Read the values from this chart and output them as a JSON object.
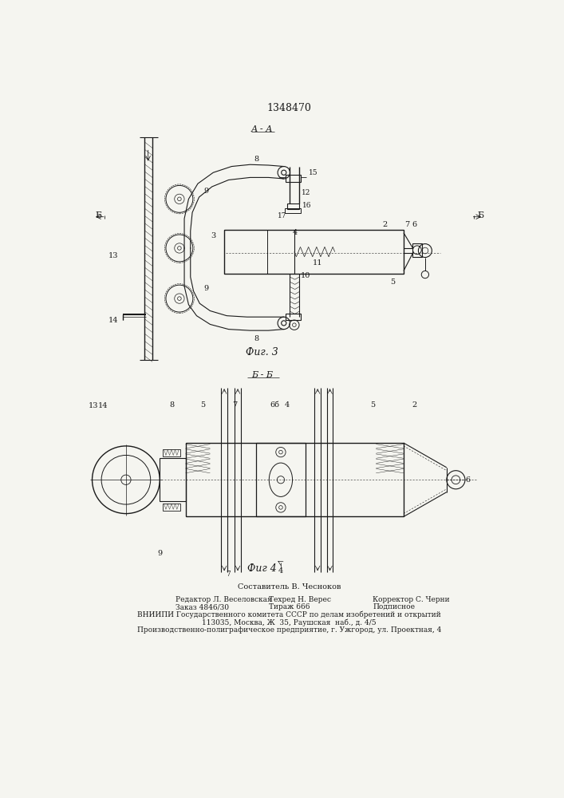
{
  "patent_number": "1348470",
  "section_label_top": "А - А",
  "section_label_bottom": "Б - Б",
  "fig_label_3": "Фиг. 3",
  "fig_label_4": "Фиг 4",
  "footer_line1": "Составитель В. Чесноков",
  "footer_editor": "Редактор Л. Веселовская",
  "footer_techred": "Техред Н. Верес",
  "footer_corrector": "Корректор С. Черни",
  "footer_order": "Заказ 4846/30",
  "footer_tirazh": "Тираж 666",
  "footer_podpisnoe": "Подписное",
  "footer_vniipи": "ВНИИПИ Государственного комитета СССР по делам изобретений и открытий",
  "footer_address": "113035, Москва, Ж  35, Раушская  наб., д. 4/5",
  "footer_enterprise": "Производственно-полиграфическое предприятие, г. Ужгород, ул. Проектная, 4",
  "bg_color": "#f5f5f0",
  "line_color": "#1a1a1a",
  "text_color": "#1a1a1a"
}
